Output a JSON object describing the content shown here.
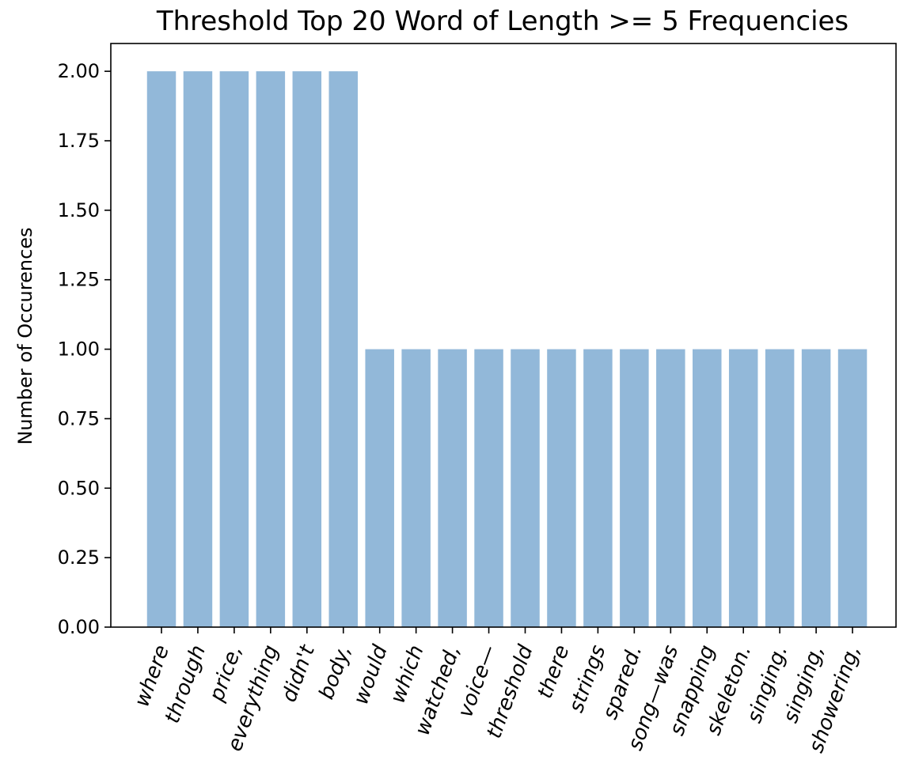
{
  "chart_data": {
    "type": "bar",
    "title": "Threshold Top 20 Word of Length >= 5 Frequencies",
    "xlabel": "",
    "ylabel": "Number of Occurences",
    "categories": [
      "where",
      "through",
      "price,",
      "everything",
      "didn't",
      "body,",
      "would",
      "which",
      "watched,",
      "voice—",
      "threshold",
      "there",
      "strings",
      "spared.",
      "song—was",
      "snapping",
      "skeleton.",
      "singing.",
      "singing,",
      "showering,"
    ],
    "values": [
      2,
      2,
      2,
      2,
      2,
      2,
      1,
      1,
      1,
      1,
      1,
      1,
      1,
      1,
      1,
      1,
      1,
      1,
      1,
      1
    ],
    "ylim": [
      0,
      2.1
    ],
    "yticks": [
      "0.00",
      "0.25",
      "0.50",
      "0.75",
      "1.00",
      "1.25",
      "1.50",
      "1.75",
      "2.00"
    ],
    "grid": false,
    "bar_color": "#92b8d9",
    "category_label_rotation_deg": 70
  }
}
